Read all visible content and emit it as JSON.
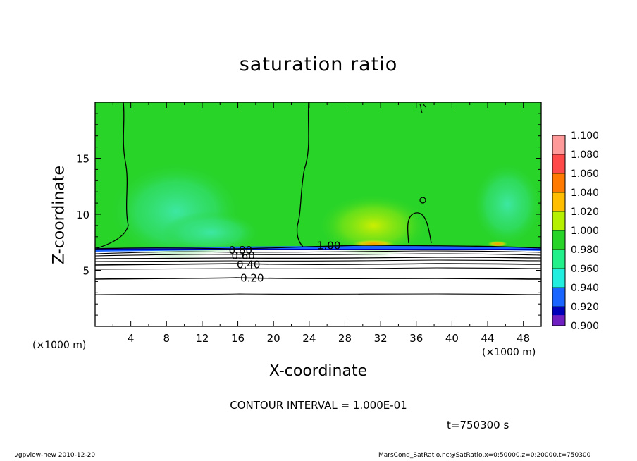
{
  "chart_data": {
    "type": "heatmap",
    "title": "saturation ratio",
    "xlabel": "X-coordinate",
    "ylabel": "Z-coordinate",
    "x_unit_label": "(×1000 m)",
    "xlim": [
      0,
      50
    ],
    "ylim": [
      0,
      20
    ],
    "x_ticks": [
      "4",
      "8",
      "12",
      "16",
      "20",
      "24",
      "28",
      "32",
      "36",
      "40",
      "44",
      "48"
    ],
    "x_tick_values": [
      4,
      8,
      12,
      16,
      20,
      24,
      28,
      32,
      36,
      40,
      44,
      48
    ],
    "y_ticks": [
      "5",
      "10",
      "15"
    ],
    "y_tick_values": [
      5,
      10,
      15
    ],
    "colorbar": {
      "labels": [
        "1.100",
        "1.080",
        "1.060",
        "1.040",
        "1.020",
        "1.000",
        "0.980",
        "0.960",
        "0.940",
        "0.920",
        "0.900"
      ],
      "values": [
        1.1,
        1.08,
        1.06,
        1.04,
        1.02,
        1.0,
        0.98,
        0.96,
        0.94,
        0.92,
        0.9
      ],
      "colors": [
        "#ff9a9a",
        "#ff4a4a",
        "#ff7a00",
        "#ffbe00",
        "#b4f000",
        "#28d428",
        "#22f08a",
        "#22eee0",
        "#1a64ff",
        "#0000b8",
        "#7020c0"
      ]
    },
    "contour_labels": [
      {
        "text": "1.00",
        "x": 26.2,
        "y": 7.2
      },
      {
        "text": "0.80",
        "x": 16.3,
        "y": 6.8
      },
      {
        "text": "0.60",
        "x": 16.6,
        "y": 6.3
      },
      {
        "text": "0.40",
        "x": 17.2,
        "y": 5.5
      },
      {
        "text": "0.20",
        "x": 17.6,
        "y": 4.3
      }
    ],
    "contour_interval": "CONTOUR INTERVAL = 1.000E-01",
    "time_label": "t=750300 s"
  },
  "footer": {
    "left": "./gpview-new   2010-12-20",
    "right": "MarsCond_SatRatio.nc@SatRatio,x=0:50000,z=0:20000,t=750300"
  }
}
